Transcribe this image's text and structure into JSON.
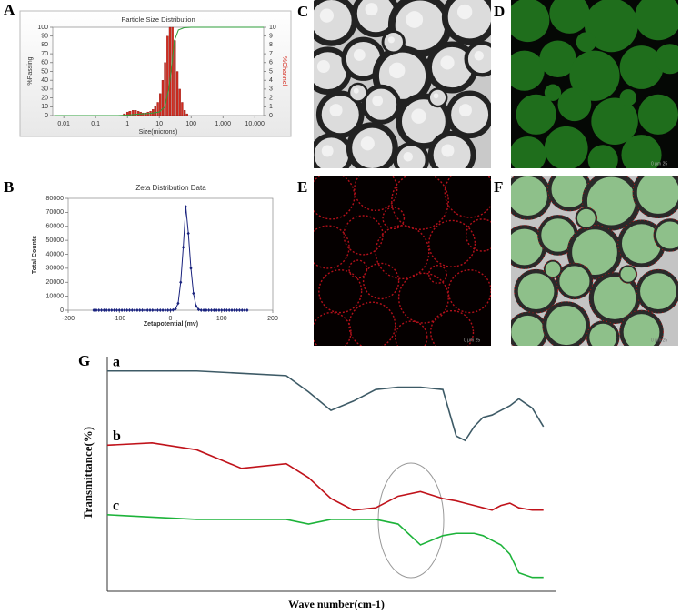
{
  "panel_labels": [
    "A",
    "B",
    "C",
    "D",
    "E",
    "F",
    "G"
  ],
  "scale_bars": [
    "0 μm 25",
    "0 μm 25",
    "0 μm 25"
  ],
  "chart_data": [
    {
      "type": "combo",
      "title": "Particle Size Distribution",
      "x_label": "Size(microns)",
      "y_label": "%Passing",
      "y2_label": "%Channel",
      "xscale": "log",
      "xlim": [
        0.0045,
        19000
      ],
      "xticks": [
        0.01,
        0.1,
        1,
        10,
        100,
        {
          "value": 1000,
          "label": "1,000"
        },
        {
          "value": 10000,
          "label": "10,000"
        }
      ],
      "ylim": [
        0,
        100
      ],
      "yticks": [
        0,
        10,
        20,
        30,
        40,
        50,
        60,
        70,
        80,
        90,
        100
      ],
      "y2lim": [
        0,
        10
      ],
      "y2ticks": [
        0,
        1,
        2,
        3,
        4,
        5,
        6,
        7,
        8,
        9,
        10
      ],
      "series": [
        {
          "kind": "bar",
          "axis": "y2",
          "color": "#d42a1e",
          "x": [
            0.8,
            1,
            1.2,
            1.5,
            1.8,
            2.2,
            2.6,
            3.1,
            3.7,
            4.4,
            5.3,
            6.3,
            7.5,
            9,
            10.7,
            12.8,
            15.2,
            18.2,
            21.7,
            25.9,
            30.9,
            36.9,
            44,
            52.5,
            62.6,
            74.7
          ],
          "values": [
            0.2,
            0.4,
            0.5,
            0.6,
            0.6,
            0.5,
            0.4,
            0.3,
            0.3,
            0.4,
            0.5,
            0.7,
            1.0,
            1.5,
            2.5,
            4,
            6,
            9,
            10,
            10,
            8.5,
            5,
            3,
            1.5,
            0.6,
            0.2
          ]
        },
        {
          "kind": "line",
          "axis": "y",
          "color": "#2e9e3a",
          "x": [
            0.005,
            0.5,
            1,
            2,
            5,
            10,
            15,
            20,
            25,
            30,
            40,
            60,
            100,
            1000,
            19000
          ],
          "values": [
            0,
            0,
            0.5,
            1.5,
            2.5,
            4,
            10,
            30,
            60,
            85,
            97,
            99.5,
            100,
            100,
            100
          ]
        }
      ]
    },
    {
      "type": "line",
      "title": "Zeta Distribution Data",
      "x_label": "Zetapotential (mv)",
      "y_label": "Total Counts",
      "xlim": [
        -200,
        200
      ],
      "xticks": [
        -200,
        -100,
        0,
        100,
        200
      ],
      "ylim": [
        0,
        80000
      ],
      "yticks": [
        0,
        10000,
        20000,
        30000,
        40000,
        50000,
        60000,
        70000,
        80000
      ],
      "markers": true,
      "x": [
        -150,
        -145,
        -140,
        -135,
        -130,
        -125,
        -120,
        -115,
        -110,
        -105,
        -100,
        -95,
        -90,
        -85,
        -80,
        -75,
        -70,
        -65,
        -60,
        -55,
        -50,
        -45,
        -40,
        -35,
        -30,
        -25,
        -20,
        -15,
        -10,
        -5,
        0,
        5,
        10,
        15,
        20,
        25,
        30,
        35,
        40,
        45,
        50,
        55,
        60,
        65,
        70,
        75,
        80,
        85,
        90,
        95,
        100,
        105,
        110,
        115,
        120,
        125,
        130,
        135,
        140,
        145,
        150
      ],
      "series": [
        {
          "color": "#1a237e",
          "values": [
            0,
            0,
            0,
            0,
            0,
            0,
            0,
            0,
            0,
            0,
            0,
            0,
            0,
            0,
            0,
            0,
            0,
            0,
            0,
            0,
            0,
            0,
            0,
            0,
            0,
            0,
            0,
            0,
            0,
            0,
            0,
            200,
            1000,
            5000,
            20000,
            45000,
            74000,
            55000,
            30000,
            12000,
            3000,
            500,
            0,
            0,
            0,
            0,
            0,
            0,
            0,
            0,
            0,
            0,
            0,
            0,
            0,
            0,
            0,
            0,
            0,
            0,
            0
          ]
        }
      ]
    },
    {
      "type": "line",
      "x_label": "Wave number(cm-1)",
      "y_label": "Transmittance(%)",
      "xlim": [
        0,
        100
      ],
      "ylim": [
        0,
        100
      ],
      "x": [
        0,
        10,
        20,
        30,
        40,
        45,
        50,
        55,
        60,
        65,
        70,
        75,
        78,
        80,
        82,
        84,
        86,
        88,
        90,
        92,
        95,
        97.5
      ],
      "series": [
        {
          "name": "a",
          "color": "#3d5a66",
          "values": [
            95,
            95,
            95,
            94,
            93,
            86,
            78,
            82,
            87,
            88,
            88,
            87,
            67,
            65,
            71,
            75,
            76,
            78,
            80,
            83,
            79,
            71
          ]
        },
        {
          "name": "b",
          "color": "#c0121a",
          "values": [
            63,
            64,
            61,
            53,
            55,
            49,
            40,
            35,
            36,
            41,
            43,
            40,
            39,
            38,
            37,
            36,
            35,
            37,
            38,
            36,
            35,
            35
          ]
        },
        {
          "name": "c",
          "color": "#1db33a",
          "values": [
            33,
            32,
            31,
            31,
            31,
            29,
            31,
            31,
            31,
            29,
            20,
            24,
            25,
            25,
            25,
            24,
            22,
            20,
            16,
            8,
            6,
            6
          ]
        }
      ]
    }
  ]
}
